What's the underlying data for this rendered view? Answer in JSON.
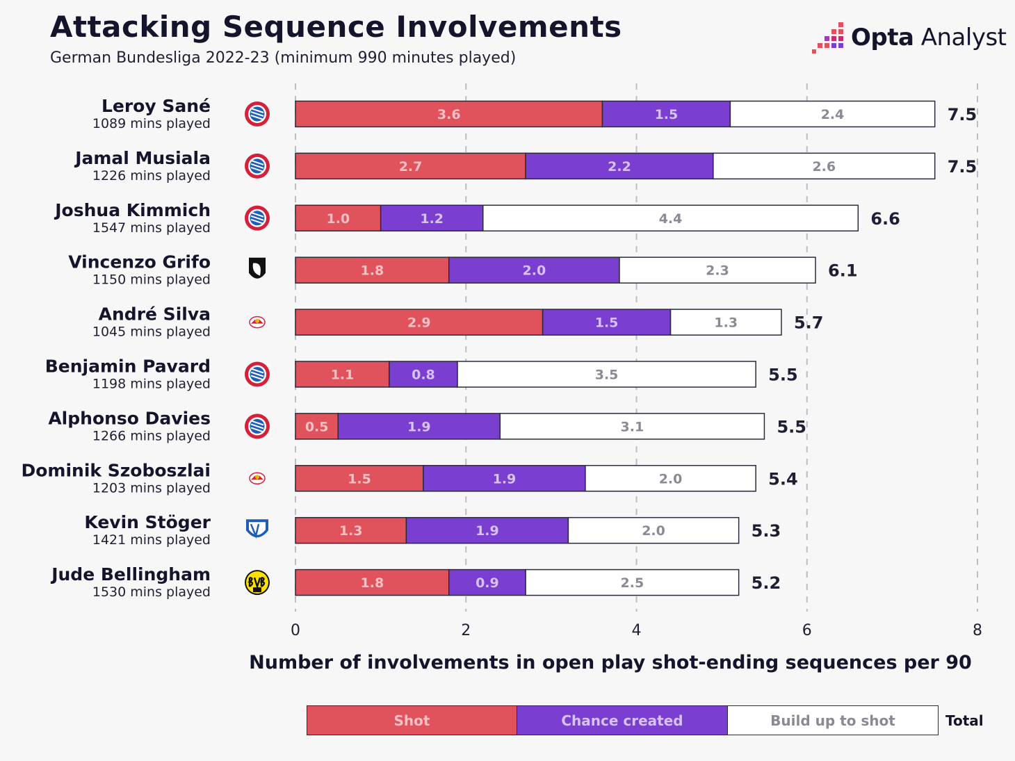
{
  "header": {
    "title": "Attacking Sequence Involvements",
    "subtitle": "German Bundesliga 2022-23 (minimum 990 minutes played)",
    "brand_bold": "Opta",
    "brand_light": " Analyst"
  },
  "colors": {
    "shot": "#e0525c",
    "chance": "#7a3fd1",
    "buildup": "#ffffff",
    "outline": "#2a2a3a",
    "grid": "#bcbcc4"
  },
  "legend": {
    "shot": "Shot",
    "chance": "Chance created",
    "buildup": "Build up to shot",
    "total": "Total"
  },
  "chart_data": {
    "type": "bar",
    "orientation": "horizontal",
    "stacked": true,
    "xlabel": "Number of involvements in open play shot-ending sequences per 90",
    "xlim": [
      0,
      8
    ],
    "xticks": [
      0,
      2,
      4,
      6,
      8
    ],
    "grid": true,
    "players": [
      {
        "name": "Leroy Sané",
        "mins": "1089 mins played",
        "badge": "fc-bayern-crest-icon",
        "shot": 3.6,
        "chance": 1.5,
        "buildup": 2.4,
        "total": 7.5
      },
      {
        "name": "Jamal Musiala",
        "mins": "1226 mins played",
        "badge": "fc-bayern-crest-icon",
        "shot": 2.7,
        "chance": 2.2,
        "buildup": 2.6,
        "total": 7.5
      },
      {
        "name": "Joshua Kimmich",
        "mins": "1547 mins played",
        "badge": "fc-bayern-crest-icon",
        "shot": 1.0,
        "chance": 1.2,
        "buildup": 4.4,
        "total": 6.6
      },
      {
        "name": "Vincenzo Grifo",
        "mins": "1150 mins played",
        "badge": "sc-freiburg-crest-icon",
        "shot": 1.8,
        "chance": 2.0,
        "buildup": 2.3,
        "total": 6.1
      },
      {
        "name": "André Silva",
        "mins": "1045 mins played",
        "badge": "rb-leipzig-crest-icon",
        "shot": 2.9,
        "chance": 1.5,
        "buildup": 1.3,
        "total": 5.7
      },
      {
        "name": "Benjamin Pavard",
        "mins": "1198 mins played",
        "badge": "fc-bayern-crest-icon",
        "shot": 1.1,
        "chance": 0.8,
        "buildup": 3.5,
        "total": 5.5
      },
      {
        "name": "Alphonso Davies",
        "mins": "1266 mins played",
        "badge": "fc-bayern-crest-icon",
        "shot": 0.5,
        "chance": 1.9,
        "buildup": 3.1,
        "total": 5.5
      },
      {
        "name": "Dominik Szoboszlai",
        "mins": "1203 mins played",
        "badge": "rb-leipzig-crest-icon",
        "shot": 1.5,
        "chance": 1.9,
        "buildup": 2.0,
        "total": 5.4
      },
      {
        "name": "Kevin Stöger",
        "mins": "1421 mins played",
        "badge": "vfl-bochum-crest-icon",
        "shot": 1.3,
        "chance": 1.9,
        "buildup": 2.0,
        "total": 5.3
      },
      {
        "name": "Jude Bellingham",
        "mins": "1530 mins played",
        "badge": "bvb-crest-icon",
        "shot": 1.8,
        "chance": 0.9,
        "buildup": 2.5,
        "total": 5.2
      }
    ]
  }
}
